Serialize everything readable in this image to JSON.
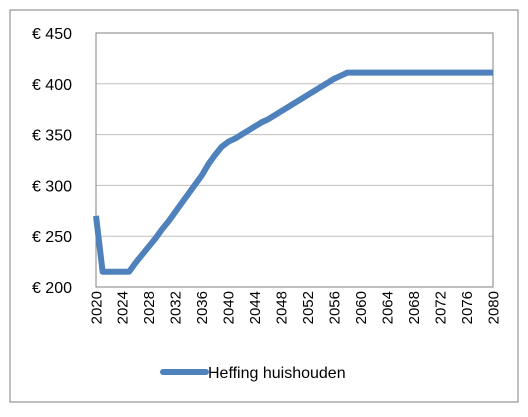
{
  "chart_data": {
    "type": "line",
    "title": "",
    "xlabel": "",
    "ylabel": "",
    "xlim": [
      2020,
      2080
    ],
    "ylim": [
      200,
      450
    ],
    "y_ticks": [
      200,
      250,
      300,
      350,
      400,
      450
    ],
    "y_tick_labels": [
      "€ 200",
      "€ 250",
      "€ 300",
      "€ 350",
      "€ 400",
      "€ 450"
    ],
    "x_ticks": [
      2020,
      2024,
      2028,
      2032,
      2036,
      2040,
      2044,
      2048,
      2052,
      2056,
      2060,
      2064,
      2068,
      2072,
      2076,
      2080
    ],
    "x_tick_labels": [
      "2020",
      "2024",
      "2028",
      "2032",
      "2036",
      "2040",
      "2044",
      "2048",
      "2052",
      "2056",
      "2060",
      "2064",
      "2068",
      "2072",
      "2076",
      "2080"
    ],
    "grid": "horizontal",
    "legend_position": "bottom",
    "series": [
      {
        "name": "Heffing huishouden",
        "color": "#4F81BD",
        "x": [
          2020,
          2021,
          2022,
          2023,
          2024,
          2025,
          2026,
          2027,
          2028,
          2029,
          2030,
          2031,
          2032,
          2033,
          2034,
          2035,
          2036,
          2037,
          2038,
          2039,
          2040,
          2041,
          2042,
          2043,
          2044,
          2045,
          2046,
          2047,
          2048,
          2049,
          2050,
          2051,
          2052,
          2053,
          2054,
          2055,
          2056,
          2057,
          2058,
          2059,
          2060,
          2061,
          2062,
          2063,
          2064,
          2065,
          2066,
          2067,
          2068,
          2069,
          2070,
          2071,
          2072,
          2073,
          2074,
          2075,
          2076,
          2077,
          2078,
          2079,
          2080
        ],
        "values": [
          270,
          215,
          215,
          215,
          215,
          215,
          224,
          232,
          240,
          248,
          257,
          265,
          274,
          283,
          292,
          301,
          310,
          321,
          330,
          338,
          343,
          346,
          350,
          354,
          358,
          362,
          365,
          369,
          373,
          377,
          381,
          385,
          389,
          393,
          397,
          401,
          405,
          408,
          411,
          411,
          411,
          411,
          411,
          411,
          411,
          411,
          411,
          411,
          411,
          411,
          411,
          411,
          411,
          411,
          411,
          411,
          411,
          411,
          411,
          411,
          411
        ]
      }
    ]
  }
}
